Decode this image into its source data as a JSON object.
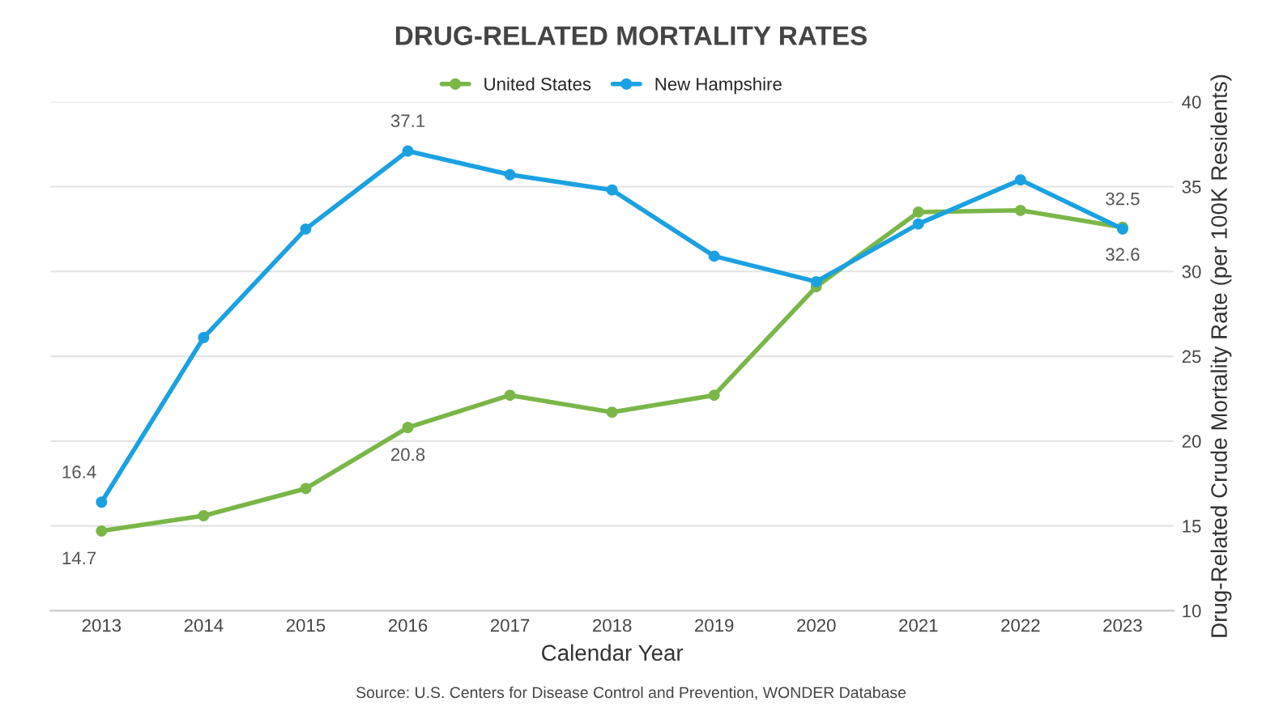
{
  "chart_data": {
    "type": "line",
    "title": "DRUG-RELATED MORTALITY RATES",
    "xlabel": "Calendar Year",
    "ylabel": "Drug-Related Crude Mortality Rate (per 100K Residents)",
    "categories": [
      "2013",
      "2014",
      "2015",
      "2016",
      "2017",
      "2018",
      "2019",
      "2020",
      "2021",
      "2022",
      "2023"
    ],
    "series": [
      {
        "name": "United States",
        "color": "#7ab648",
        "values": [
          14.7,
          15.6,
          17.2,
          20.8,
          22.7,
          21.7,
          22.7,
          29.1,
          33.5,
          33.6,
          32.6
        ],
        "value_labels": [
          "14.7",
          null,
          null,
          "20.8",
          null,
          null,
          null,
          null,
          null,
          null,
          "32.6"
        ]
      },
      {
        "name": "New Hampshire",
        "color": "#1ba1e2",
        "values": [
          16.4,
          26.1,
          32.5,
          37.1,
          35.7,
          34.8,
          30.9,
          29.4,
          32.8,
          35.4,
          32.5
        ],
        "value_labels": [
          "16.4",
          null,
          null,
          "37.1",
          null,
          null,
          null,
          null,
          null,
          null,
          "32.5"
        ]
      }
    ],
    "ylim": [
      10,
      40
    ],
    "yticks": [
      10,
      15,
      20,
      25,
      30,
      35,
      40
    ],
    "grid": "y",
    "legend": "top",
    "marker": "circle",
    "line_style": "solid",
    "annotations": [
      "Source: U.S. Centers for Disease Control and Prevention, WONDER Database"
    ]
  }
}
